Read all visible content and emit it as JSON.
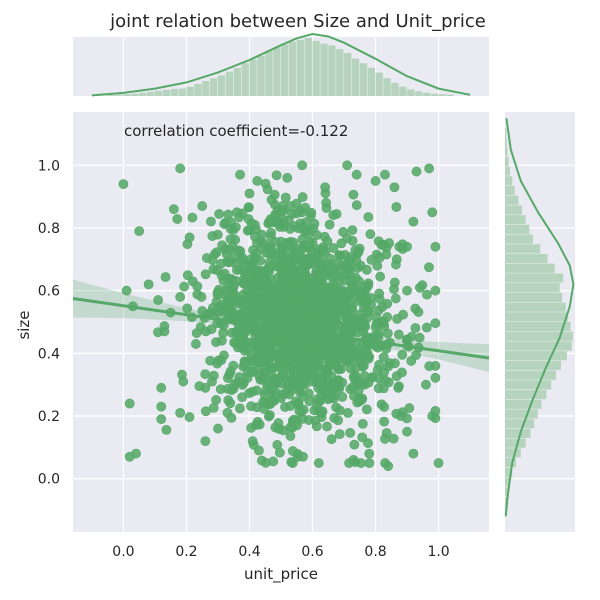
{
  "chart_data": {
    "type": "scatter",
    "title": "joint relation between Size and Unit_price",
    "xlabel": "unit_price",
    "ylabel": "size",
    "annotation": "correlation coefficient=-0.122",
    "correlation": -0.122,
    "xlim": [
      -0.16,
      1.16
    ],
    "ylim": [
      -0.17,
      1.17
    ],
    "x_ticks": [
      0.0,
      0.2,
      0.4,
      0.6,
      0.8,
      1.0
    ],
    "x_tick_labels": [
      "0.0",
      "0.2",
      "0.4",
      "0.6",
      "0.8",
      "1.0"
    ],
    "y_ticks": [
      0.0,
      0.2,
      0.4,
      0.6,
      0.8,
      1.0
    ],
    "y_tick_labels": [
      "0.0",
      "0.2",
      "0.4",
      "0.6",
      "0.8",
      "1.0"
    ],
    "grid": true,
    "regression": {
      "x": [
        -0.16,
        1.16
      ],
      "y": [
        0.575,
        0.385
      ]
    },
    "points": [
      [
        0.0,
        0.94
      ],
      [
        0.02,
        0.24
      ],
      [
        0.02,
        0.07
      ],
      [
        0.04,
        0.08
      ],
      [
        0.01,
        0.6
      ],
      [
        0.03,
        0.55
      ],
      [
        0.05,
        0.79
      ],
      [
        0.08,
        0.62
      ],
      [
        0.11,
        0.57
      ],
      [
        0.12,
        0.29
      ],
      [
        0.12,
        0.19
      ],
      [
        0.12,
        0.23
      ],
      [
        0.15,
        0.53
      ],
      [
        0.13,
        0.47
      ],
      [
        0.16,
        0.86
      ],
      [
        0.18,
        0.58
      ],
      [
        0.18,
        0.99
      ],
      [
        0.18,
        0.21
      ],
      [
        0.19,
        0.31
      ],
      [
        0.21,
        0.77
      ],
      [
        0.22,
        0.63
      ],
      [
        0.25,
        0.87
      ],
      [
        0.26,
        0.12
      ],
      [
        0.26,
        0.29
      ],
      [
        0.23,
        0.43
      ],
      [
        0.3,
        0.16
      ],
      [
        0.36,
        0.85
      ],
      [
        0.37,
        0.97
      ],
      [
        0.4,
        0.91
      ],
      [
        0.41,
        0.12
      ],
      [
        0.43,
        0.09
      ],
      [
        0.57,
        0.07
      ],
      [
        0.62,
        0.05
      ],
      [
        0.64,
        0.93
      ],
      [
        0.71,
        1.0
      ],
      [
        0.74,
        0.97
      ],
      [
        0.73,
        0.06
      ],
      [
        0.78,
        0.08
      ],
      [
        0.8,
        0.95
      ],
      [
        0.83,
        0.97
      ],
      [
        0.86,
        0.93
      ],
      [
        0.88,
        0.2
      ],
      [
        0.9,
        0.15
      ],
      [
        0.92,
        0.08
      ],
      [
        0.93,
        0.98
      ],
      [
        0.97,
        0.99
      ],
      [
        0.98,
        0.85
      ],
      [
        0.99,
        0.74
      ],
      [
        0.99,
        0.6
      ],
      [
        0.99,
        0.36
      ],
      [
        0.98,
        0.2
      ],
      [
        1.0,
        0.05
      ],
      [
        0.84,
        0.04
      ],
      [
        0.52,
        0.96
      ],
      [
        0.47,
        0.89
      ],
      [
        0.9,
        0.74
      ],
      [
        0.94,
        0.45
      ],
      [
        0.96,
        0.3
      ],
      [
        0.9,
        0.6
      ],
      [
        0.92,
        0.82
      ]
    ],
    "cloud": {
      "count": 1550,
      "x_mean": 0.56,
      "x_sd": 0.15,
      "y_mean": 0.505,
      "y_sd": 0.165,
      "seed": 7
    },
    "x_hist": {
      "bins": [
        -0.05,
        1.05
      ],
      "counts": [
        2,
        3,
        4,
        5,
        7,
        9,
        11,
        13,
        15,
        16,
        20,
        26,
        32,
        38,
        44,
        52,
        60,
        70,
        78,
        86,
        96,
        104,
        110,
        116,
        120,
        124,
        118,
        112,
        108,
        100,
        92,
        80,
        70,
        60,
        50,
        38,
        28,
        20,
        14,
        10,
        7,
        5,
        4,
        3
      ]
    },
    "y_hist": {
      "bins": [
        -0.12,
        1.12
      ],
      "counts": [
        2,
        3,
        5,
        8,
        12,
        18,
        26,
        34,
        42,
        48,
        54,
        60,
        68,
        76,
        84,
        92,
        102,
        110,
        112,
        108,
        104,
        100,
        94,
        90,
        96,
        82,
        70,
        58,
        46,
        40,
        34,
        28,
        22,
        16,
        12,
        8,
        6,
        4,
        3,
        2
      ]
    },
    "kde_x": [
      [
        -0.1,
        0.01
      ],
      [
        0.0,
        0.05
      ],
      [
        0.1,
        0.12
      ],
      [
        0.2,
        0.22
      ],
      [
        0.3,
        0.38
      ],
      [
        0.4,
        0.58
      ],
      [
        0.5,
        0.82
      ],
      [
        0.55,
        0.93
      ],
      [
        0.6,
        1.0
      ],
      [
        0.65,
        0.96
      ],
      [
        0.7,
        0.86
      ],
      [
        0.8,
        0.6
      ],
      [
        0.9,
        0.32
      ],
      [
        1.0,
        0.12
      ],
      [
        1.1,
        0.02
      ]
    ],
    "kde_y": [
      [
        -0.12,
        0.01
      ],
      [
        -0.05,
        0.04
      ],
      [
        0.05,
        0.1
      ],
      [
        0.15,
        0.22
      ],
      [
        0.25,
        0.38
      ],
      [
        0.35,
        0.56
      ],
      [
        0.45,
        0.76
      ],
      [
        0.55,
        0.9
      ],
      [
        0.62,
        0.95
      ],
      [
        0.68,
        0.9
      ],
      [
        0.75,
        0.74
      ],
      [
        0.85,
        0.46
      ],
      [
        0.95,
        0.22
      ],
      [
        1.05,
        0.08
      ],
      [
        1.15,
        0.02
      ]
    ]
  },
  "colors": {
    "marker": "#55a868",
    "background": "#eaeaf2",
    "grid": "#ffffff",
    "hist": "#b5d3bd"
  }
}
